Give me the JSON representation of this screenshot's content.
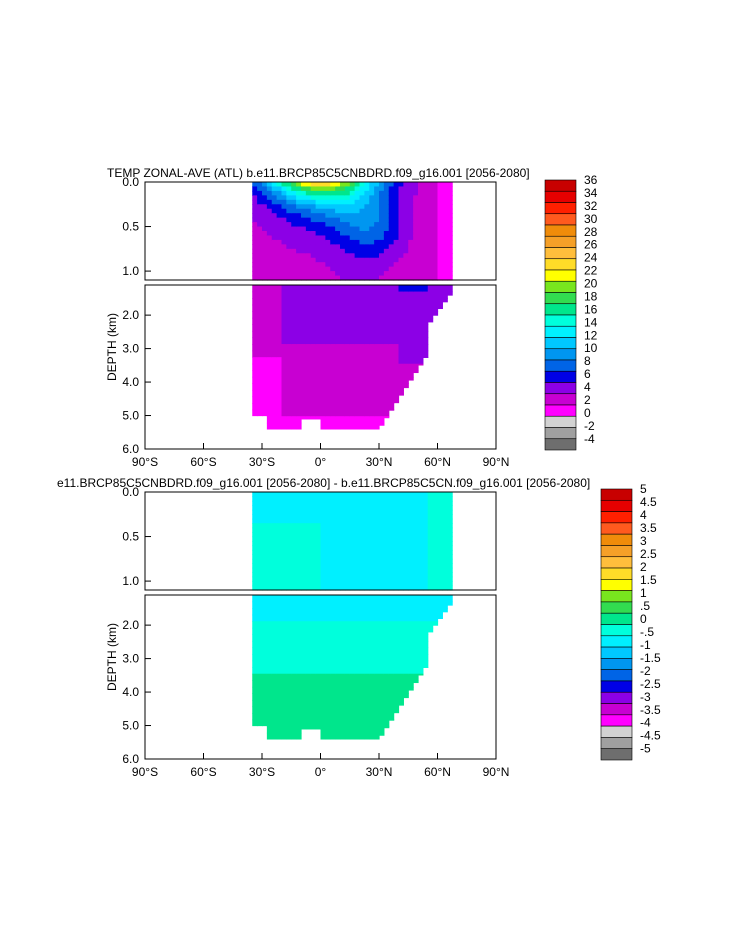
{
  "panels": [
    {
      "title": "TEMP ZONAL-AVE (ATL) b.e11.BRCP85C5CNBDRD.f09_g16.001 [2056-2080]",
      "ylabel": "DEPTH (km)",
      "upper_yticks": [
        "0.0",
        "0.5",
        "1.0"
      ],
      "lower_yticks": [
        "2.0",
        "3.0",
        "4.0",
        "5.0",
        "6.0"
      ],
      "xticks": [
        "90°S",
        "60°S",
        "30°S",
        "0°",
        "30°N",
        "60°N",
        "90°N"
      ],
      "colorbar": {
        "labels": [
          "36",
          "34",
          "32",
          "30",
          "28",
          "26",
          "24",
          "22",
          "20",
          "18",
          "16",
          "14",
          "12",
          "10",
          "8",
          "6",
          "4",
          "2",
          "0",
          "-2",
          "-4"
        ],
        "colors": [
          "#c80000",
          "#e60000",
          "#ff2000",
          "#ff5a1e",
          "#f08c0a",
          "#f5a028",
          "#ffbe3c",
          "#ffdc28",
          "#ffff00",
          "#78e61e",
          "#32dc50",
          "#00e68c",
          "#00ffdc",
          "#00f0ff",
          "#00c8ff",
          "#0096f0",
          "#0064e6",
          "#0000e6",
          "#8c00e6",
          "#c800d2",
          "#ff00ff",
          "#d2d2d2",
          "#a0a0a0",
          "#6e6e6e"
        ]
      }
    },
    {
      "title": "e11.BRCP85C5CNBDRD.f09_g16.001 [2056-2080] - b.e11.BRCP85C5CN.f09_g16.001 [2056-2080]",
      "ylabel": "DEPTH (km)",
      "upper_yticks": [
        "0.0",
        "0.5",
        "1.0"
      ],
      "lower_yticks": [
        "2.0",
        "3.0",
        "4.0",
        "5.0",
        "6.0"
      ],
      "xticks": [
        "90°S",
        "60°S",
        "30°S",
        "0°",
        "30°N",
        "60°N",
        "90°N"
      ],
      "colorbar": {
        "labels": [
          "5",
          "4.5",
          "4",
          "3.5",
          "3",
          "2.5",
          "2",
          "1.5",
          "1",
          ".5",
          "0",
          "-.5",
          "-1",
          "-1.5",
          "-2",
          "-2.5",
          "-3",
          "-3.5",
          "-4",
          "-4.5",
          "-5"
        ],
        "colors": [
          "#c80000",
          "#e60000",
          "#ff2000",
          "#ff5a1e",
          "#f08c0a",
          "#f5a028",
          "#ffbe3c",
          "#ffdc28",
          "#ffff00",
          "#78e61e",
          "#32dc50",
          "#00e68c",
          "#00ffdc",
          "#00f0ff",
          "#00c8ff",
          "#0096f0",
          "#0064e6",
          "#0000e6",
          "#8c00e6",
          "#c800d2",
          "#ff00ff",
          "#d2d2d2",
          "#a0a0a0",
          "#6e6e6e"
        ]
      }
    }
  ],
  "chart_data": [
    {
      "type": "heatmap",
      "title": "TEMP ZONAL-AVE (ATL) b.e11.BRCP85C5CNBDRD.f09_g16.001 [2056-2080]",
      "xlabel": "",
      "ylabel": "DEPTH (km)",
      "xlim": [
        -90,
        90
      ],
      "ylim": [
        0,
        6
      ],
      "y_reversed": true,
      "upper_panel_ylim": [
        0,
        1.1
      ],
      "lower_panel_ylim": [
        1.1,
        6
      ],
      "contour_levels": [
        -4,
        -2,
        0,
        2,
        4,
        6,
        8,
        10,
        12,
        14,
        16,
        18,
        20,
        22,
        24,
        26,
        28,
        30,
        32,
        34,
        36
      ],
      "legend": "right"
    },
    {
      "type": "heatmap",
      "title": "e11.BRCP85C5CNBDRD.f09_g16.001 [2056-2080] - b.e11.BRCP85C5CN.f09_g16.001 [2056-2080]",
      "xlabel": "",
      "ylabel": "DEPTH (km)",
      "xlim": [
        -90,
        90
      ],
      "ylim": [
        0,
        6
      ],
      "y_reversed": true,
      "upper_panel_ylim": [
        0,
        1.1
      ],
      "lower_panel_ylim": [
        1.1,
        6
      ],
      "contour_levels": [
        -5,
        -4.5,
        -4,
        -3.5,
        -3,
        -2.5,
        -2,
        -1.5,
        -1,
        -0.5,
        0,
        0.5,
        1,
        1.5,
        2,
        2.5,
        3,
        3.5,
        4,
        4.5,
        5
      ],
      "legend": "right"
    }
  ]
}
